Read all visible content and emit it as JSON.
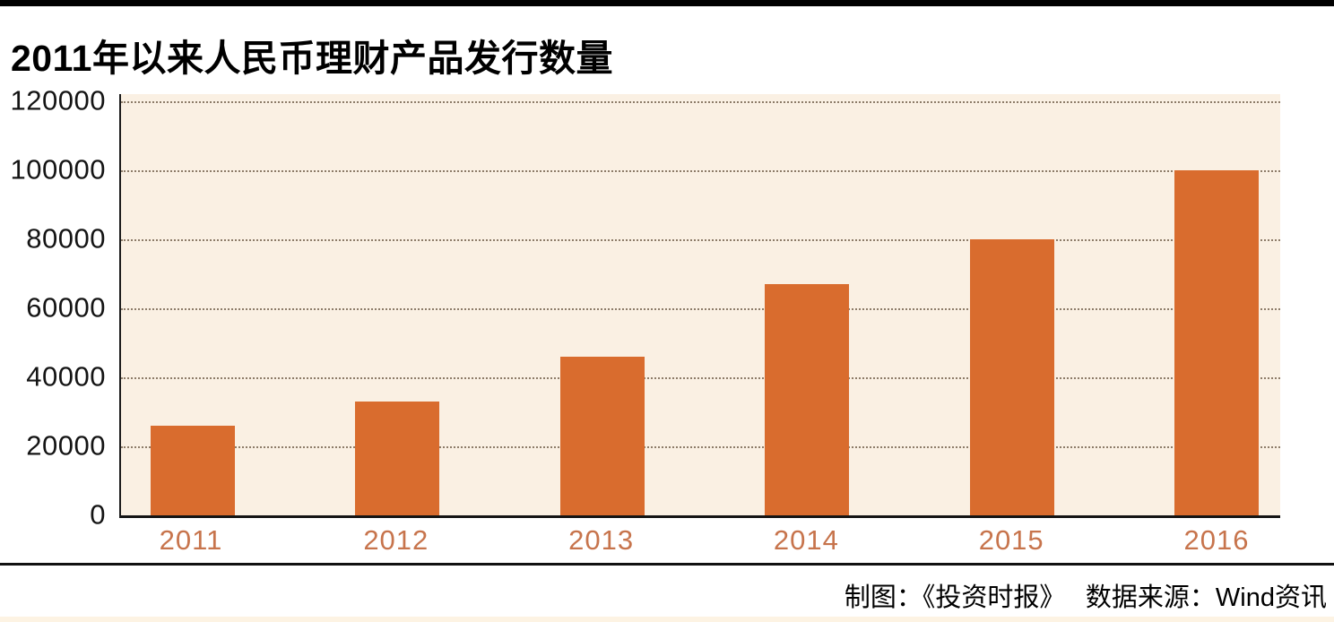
{
  "chart_data": {
    "type": "bar",
    "title": "2011年以来人民币理财产品发行数量",
    "categories": [
      "2011",
      "2012",
      "2013",
      "2014",
      "2015",
      "2016"
    ],
    "values": [
      26000,
      33000,
      46000,
      67000,
      80000,
      100000
    ],
    "xlabel": "",
    "ylabel": "",
    "ylim": [
      0,
      120000
    ],
    "yticks": [
      0,
      20000,
      40000,
      60000,
      80000,
      100000,
      120000
    ],
    "grid": "horizontal dotted gridlines",
    "legend": "none",
    "bar_color": "#d96c2e",
    "plot_background": "#faf0e3",
    "x_tick_color": "#c7744c",
    "source_note": "制图：《投资时报》　 数据来源：Wind资讯"
  }
}
